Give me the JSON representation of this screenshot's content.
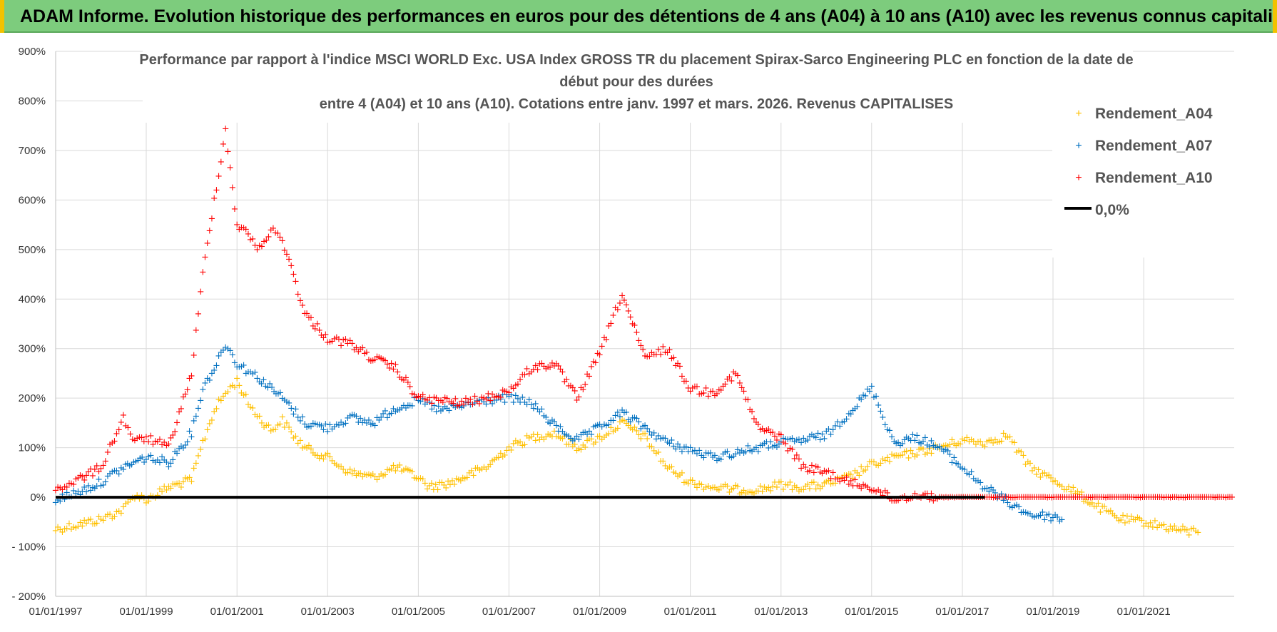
{
  "header": {
    "title": "ADAM Informe. Evolution historique des performances en euros pour des détentions de 4 ans (A04) à 10 ans (A10) avec les revenus connus capitalisés"
  },
  "colors": {
    "banner": "#7dcc7d",
    "A04": "#ffc000",
    "A07": "#0070c0",
    "A10": "#ff0000",
    "zero_line": "#000000",
    "grid": "#d9d9d9"
  },
  "chart_data": {
    "type": "scatter",
    "title_lines": [
      "Performance par rapport à l'indice MSCI WORLD Exc. USA Index GROSS TR  du placement Spirax-Sarco Engineering PLC en fonction de la date de",
      "début pour des durées",
      "entre 4 (A04) et 10 ans (A10). Cotations entre janv. 1997 et mars. 2026. Revenus CAPITALISES"
    ],
    "x_axis": {
      "type": "date",
      "range": [
        "1997-01-01",
        "2022-12-31"
      ],
      "tick_labels": [
        "01/01/1997",
        "01/01/1999",
        "01/01/2001",
        "01/01/2003",
        "01/01/2005",
        "01/01/2007",
        "01/01/2009",
        "01/01/2011",
        "01/01/2013",
        "01/01/2015",
        "01/01/2017",
        "01/01/2019",
        "01/01/2021"
      ]
    },
    "y_axis": {
      "range": [
        -200,
        900
      ],
      "unit": "%",
      "tick_labels": [
        "900%",
        "800%",
        "700%",
        "600%",
        "500%",
        "400%",
        "300%",
        "200%",
        "100%",
        "0%",
        "- 100%",
        "- 200%"
      ]
    },
    "grid": true,
    "legend_position": "top-right",
    "legend": [
      "Rendement_A04",
      "Rendement_A07",
      "Rendement_A10",
      "0,0%"
    ],
    "series": [
      {
        "name": "Rendement_A04",
        "color": "#ffc000",
        "points": [
          [
            "1997-01-01",
            -65
          ],
          [
            "1997-07-01",
            -55
          ],
          [
            "1998-01-01",
            -45
          ],
          [
            "1998-07-01",
            -25
          ],
          [
            "1998-10-01",
            5
          ],
          [
            "1999-01-01",
            -5
          ],
          [
            "1999-07-01",
            20
          ],
          [
            "2000-01-01",
            35
          ],
          [
            "2000-04-01",
            110
          ],
          [
            "2000-07-01",
            175
          ],
          [
            "2000-10-01",
            210
          ],
          [
            "2001-01-01",
            235
          ],
          [
            "2001-04-01",
            190
          ],
          [
            "2001-07-01",
            160
          ],
          [
            "2001-10-01",
            135
          ],
          [
            "2002-01-01",
            155
          ],
          [
            "2002-04-01",
            125
          ],
          [
            "2002-07-01",
            100
          ],
          [
            "2003-01-01",
            80
          ],
          [
            "2003-07-01",
            50
          ],
          [
            "2004-01-01",
            40
          ],
          [
            "2004-07-01",
            60
          ],
          [
            "2005-01-01",
            40
          ],
          [
            "2005-04-01",
            20
          ],
          [
            "2005-10-01",
            30
          ],
          [
            "2006-07-01",
            60
          ],
          [
            "2007-01-01",
            100
          ],
          [
            "2007-07-01",
            120
          ],
          [
            "2008-01-01",
            130
          ],
          [
            "2008-07-01",
            100
          ],
          [
            "2009-01-01",
            120
          ],
          [
            "2009-07-01",
            150
          ],
          [
            "2010-01-01",
            120
          ],
          [
            "2010-07-01",
            60
          ],
          [
            "2011-01-01",
            30
          ],
          [
            "2011-07-01",
            20
          ],
          [
            "2012-01-01",
            15
          ],
          [
            "2012-07-01",
            15
          ],
          [
            "2013-01-01",
            25
          ],
          [
            "2013-07-01",
            20
          ],
          [
            "2014-01-01",
            25
          ],
          [
            "2014-07-01",
            40
          ],
          [
            "2015-01-01",
            65
          ],
          [
            "2015-07-01",
            80
          ],
          [
            "2016-01-01",
            90
          ],
          [
            "2016-07-01",
            100
          ],
          [
            "2017-01-01",
            115
          ],
          [
            "2017-07-01",
            110
          ],
          [
            "2018-01-01",
            125
          ],
          [
            "2018-04-01",
            90
          ],
          [
            "2018-07-01",
            60
          ],
          [
            "2019-01-01",
            35
          ],
          [
            "2019-07-01",
            10
          ],
          [
            "2020-01-01",
            -20
          ],
          [
            "2020-07-01",
            -45
          ],
          [
            "2021-01-01",
            -50
          ],
          [
            "2021-07-01",
            -60
          ],
          [
            "2022-01-01",
            -70
          ],
          [
            "2022-04-01",
            -65
          ]
        ]
      },
      {
        "name": "Rendement_A07",
        "color": "#0070c0",
        "points": [
          [
            "1997-01-01",
            -5
          ],
          [
            "1997-07-01",
            10
          ],
          [
            "1998-01-01",
            30
          ],
          [
            "1998-07-01",
            60
          ],
          [
            "1999-01-01",
            80
          ],
          [
            "1999-07-01",
            70
          ],
          [
            "2000-01-01",
            130
          ],
          [
            "2000-04-01",
            220
          ],
          [
            "2000-07-01",
            260
          ],
          [
            "2000-10-01",
            310
          ],
          [
            "2001-01-01",
            270
          ],
          [
            "2001-07-01",
            240
          ],
          [
            "2002-01-01",
            200
          ],
          [
            "2002-07-01",
            150
          ],
          [
            "2003-01-01",
            140
          ],
          [
            "2003-07-01",
            160
          ],
          [
            "2004-01-01",
            150
          ],
          [
            "2004-07-01",
            180
          ],
          [
            "2005-01-01",
            195
          ],
          [
            "2005-07-01",
            175
          ],
          [
            "2006-01-01",
            185
          ],
          [
            "2006-07-01",
            195
          ],
          [
            "2007-01-01",
            200
          ],
          [
            "2007-07-01",
            190
          ],
          [
            "2008-01-01",
            145
          ],
          [
            "2008-07-01",
            115
          ],
          [
            "2009-01-01",
            140
          ],
          [
            "2009-07-01",
            170
          ],
          [
            "2010-01-01",
            140
          ],
          [
            "2010-07-01",
            110
          ],
          [
            "2011-01-01",
            95
          ],
          [
            "2011-07-01",
            80
          ],
          [
            "2012-01-01",
            90
          ],
          [
            "2012-07-01",
            100
          ],
          [
            "2013-01-01",
            110
          ],
          [
            "2013-07-01",
            115
          ],
          [
            "2014-01-01",
            125
          ],
          [
            "2014-07-01",
            170
          ],
          [
            "2015-01-01",
            220
          ],
          [
            "2015-07-01",
            110
          ],
          [
            "2016-01-01",
            120
          ],
          [
            "2016-07-01",
            100
          ],
          [
            "2017-01-01",
            60
          ],
          [
            "2017-07-01",
            20
          ],
          [
            "2018-01-01",
            -10
          ],
          [
            "2018-07-01",
            -35
          ],
          [
            "2019-01-01",
            -40
          ],
          [
            "2019-04-01",
            -45
          ]
        ]
      },
      {
        "name": "Rendement_A10",
        "color": "#ff0000",
        "points": [
          [
            "1997-01-01",
            15
          ],
          [
            "1997-07-01",
            35
          ],
          [
            "1998-01-01",
            60
          ],
          [
            "1998-07-01",
            160
          ],
          [
            "1998-10-01",
            110
          ],
          [
            "1999-01-01",
            120
          ],
          [
            "1999-07-01",
            100
          ],
          [
            "2000-01-01",
            250
          ],
          [
            "2000-04-01",
            450
          ],
          [
            "2000-07-01",
            600
          ],
          [
            "2000-10-01",
            740
          ],
          [
            "2001-01-01",
            550
          ],
          [
            "2001-04-01",
            530
          ],
          [
            "2001-07-01",
            500
          ],
          [
            "2001-10-01",
            540
          ],
          [
            "2002-01-01",
            520
          ],
          [
            "2002-04-01",
            450
          ],
          [
            "2002-07-01",
            370
          ],
          [
            "2003-01-01",
            320
          ],
          [
            "2003-07-01",
            310
          ],
          [
            "2004-01-01",
            280
          ],
          [
            "2004-07-01",
            260
          ],
          [
            "2005-01-01",
            200
          ],
          [
            "2005-07-01",
            195
          ],
          [
            "2006-01-01",
            190
          ],
          [
            "2006-07-01",
            200
          ],
          [
            "2007-01-01",
            215
          ],
          [
            "2007-07-01",
            260
          ],
          [
            "2008-01-01",
            270
          ],
          [
            "2008-07-01",
            200
          ],
          [
            "2009-01-01",
            290
          ],
          [
            "2009-07-01",
            410
          ],
          [
            "2010-01-01",
            280
          ],
          [
            "2010-07-01",
            300
          ],
          [
            "2011-01-01",
            220
          ],
          [
            "2011-07-01",
            210
          ],
          [
            "2012-01-01",
            250
          ],
          [
            "2012-07-01",
            140
          ],
          [
            "2013-01-01",
            120
          ],
          [
            "2013-07-01",
            60
          ],
          [
            "2014-01-01",
            50
          ],
          [
            "2014-07-01",
            30
          ],
          [
            "2015-01-01",
            20
          ],
          [
            "2015-07-01",
            -5
          ],
          [
            "2016-01-01",
            5
          ],
          [
            "2016-07-01",
            0
          ],
          [
            "2017-07-01",
            0
          ],
          [
            "2018-07-01",
            0
          ],
          [
            "2019-07-01",
            0
          ],
          [
            "2020-07-01",
            0
          ],
          [
            "2021-07-01",
            0
          ],
          [
            "2022-12-31",
            0
          ]
        ]
      }
    ],
    "reference_line": {
      "name": "0,0%",
      "y": 0,
      "color": "#000000"
    }
  }
}
